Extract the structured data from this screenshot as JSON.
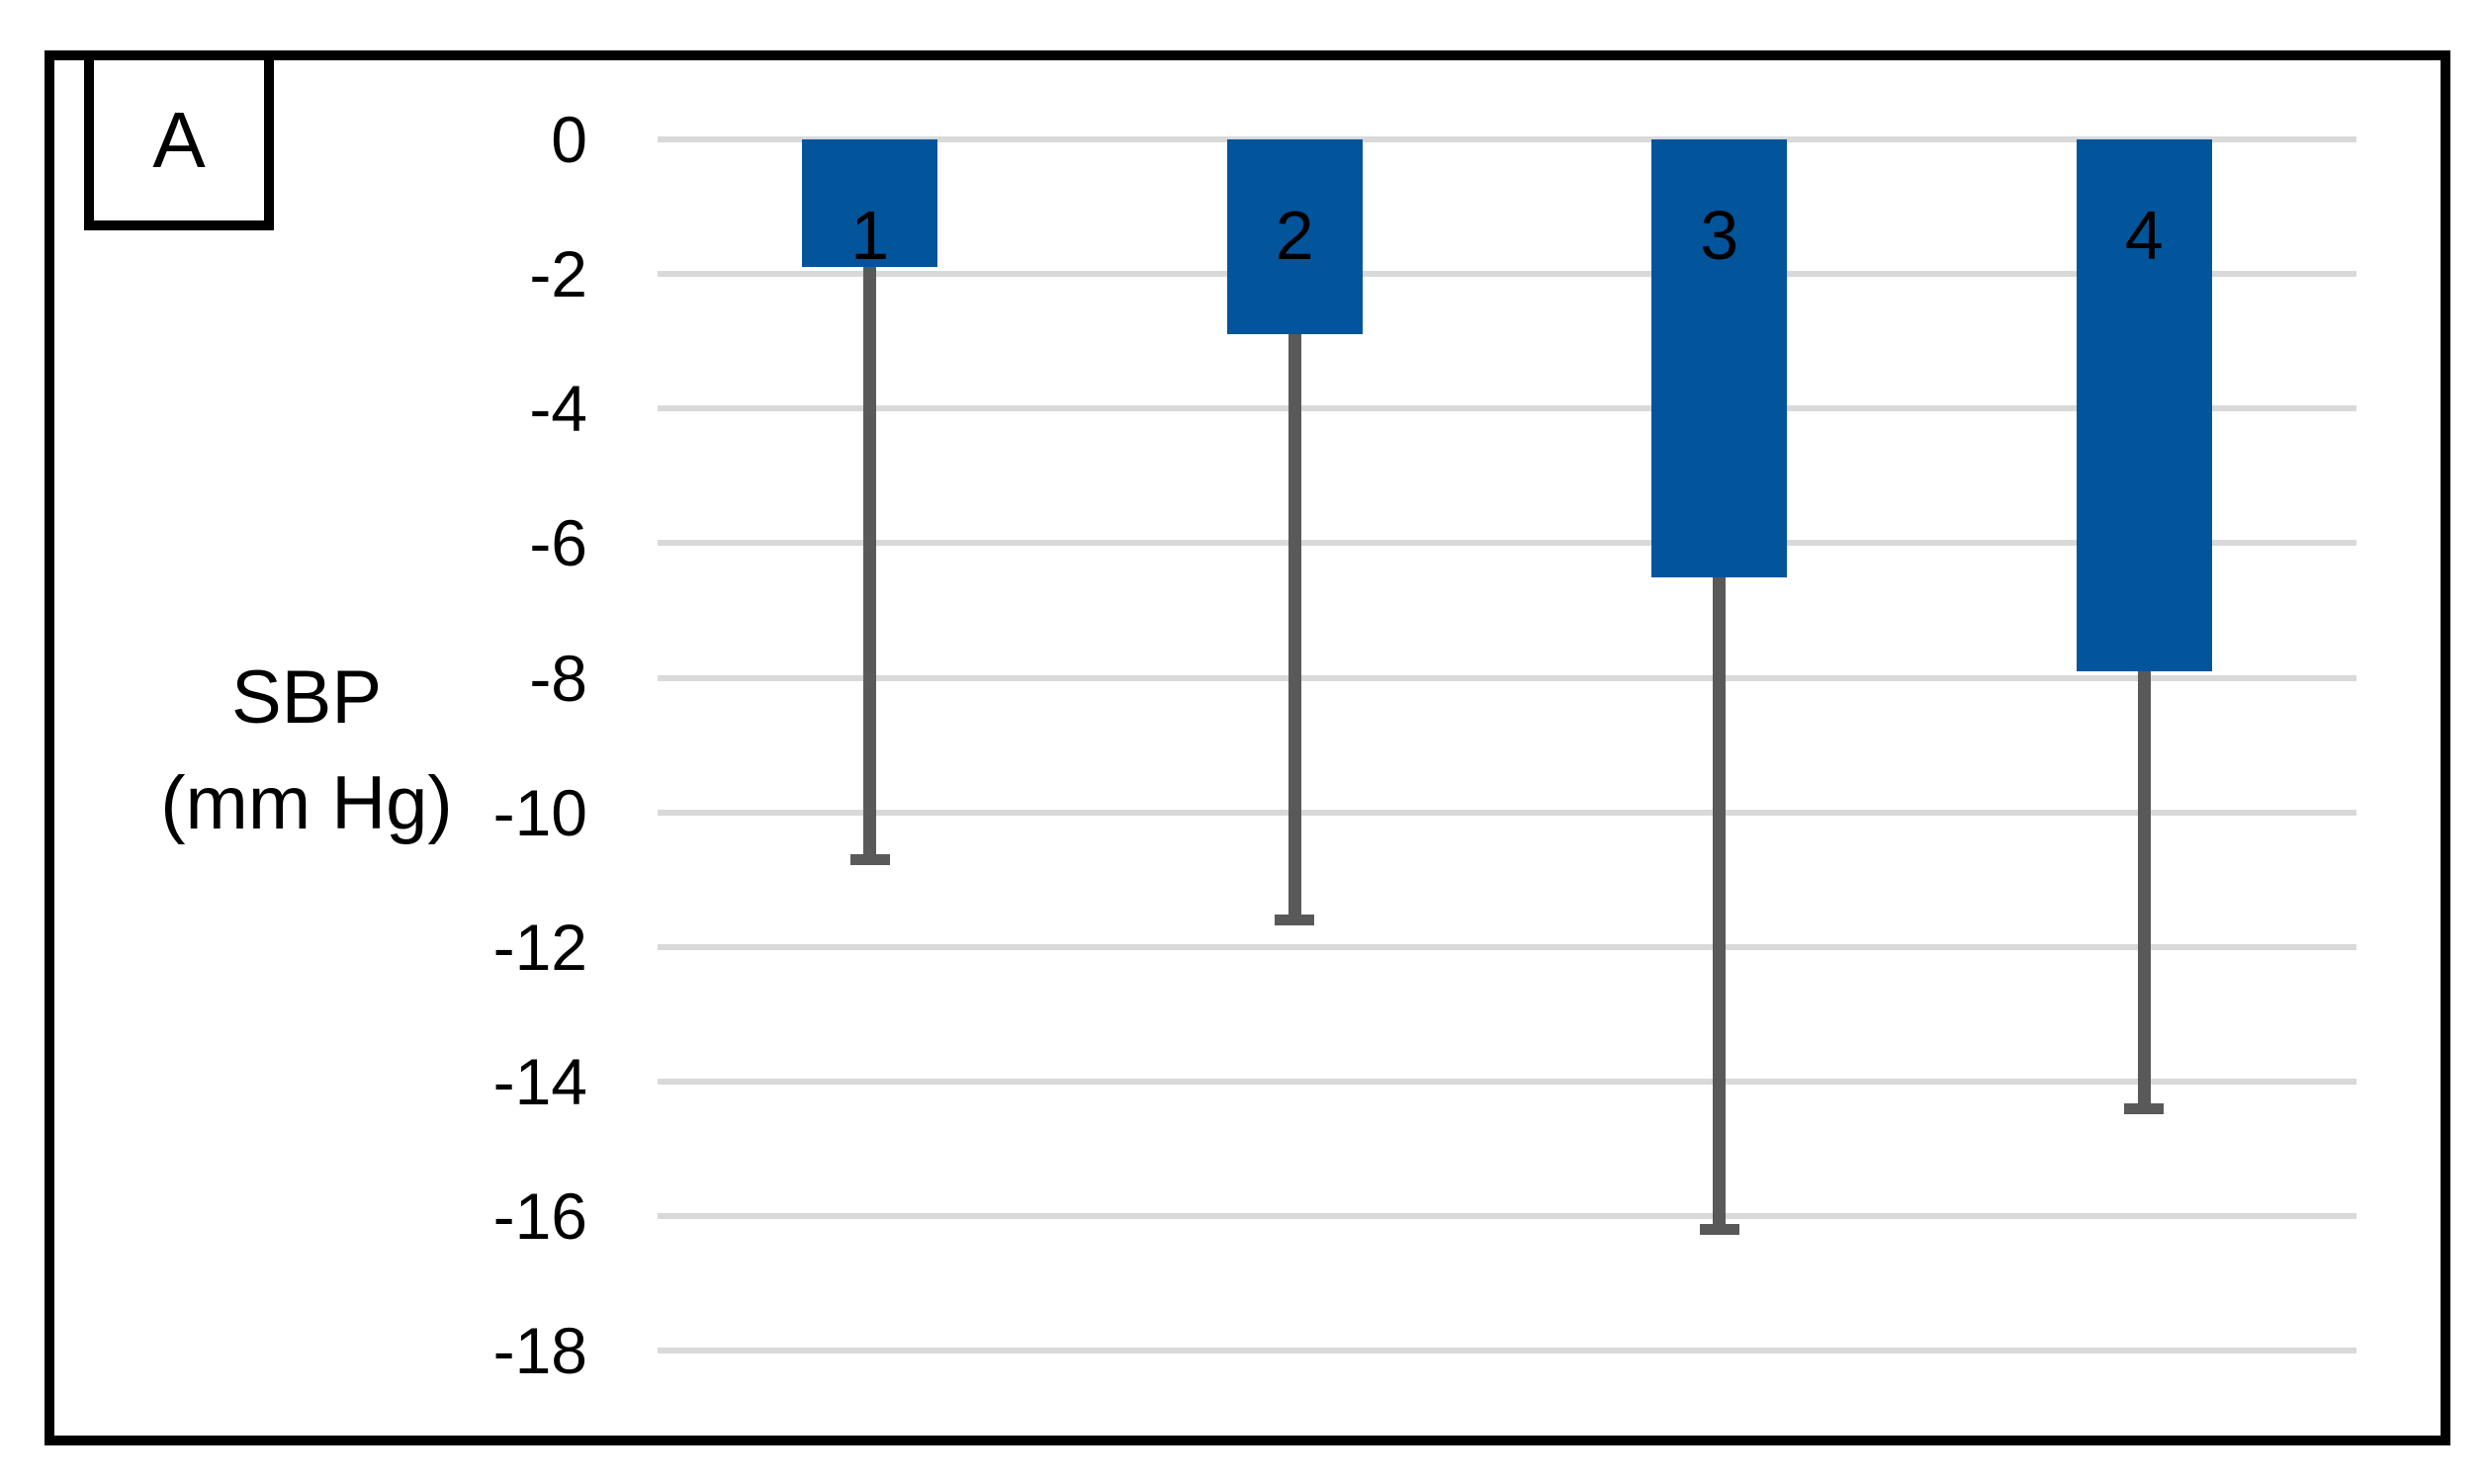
{
  "figure": {
    "panel_label": "A"
  },
  "axis": {
    "title_line1": "SBP",
    "title_line2": "(mm Hg)"
  },
  "chart_data": {
    "type": "bar",
    "categories": [
      "1",
      "2",
      "3",
      "4"
    ],
    "values": [
      -1.9,
      -2.9,
      -6.5,
      -7.9
    ],
    "error_down": [
      8.8,
      8.7,
      9.7,
      6.5
    ],
    "title": "",
    "xlabel": "",
    "ylabel": "SBP (mm Hg)",
    "ylim": [
      -18,
      0
    ],
    "yticks": [
      0,
      -2,
      -4,
      -6,
      -8,
      -10,
      -12,
      -14,
      -16,
      -18
    ],
    "grid": true,
    "legend": false,
    "bar_labels_inside_top": true,
    "bar_color": "#02549B",
    "error_bar_color": "#595959",
    "gridline_color": "#D9D9D9",
    "text_color": "#000000",
    "frame_color": "#000000"
  }
}
